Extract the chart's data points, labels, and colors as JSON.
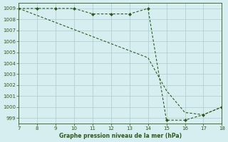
{
  "series1_x": [
    7,
    8,
    9,
    10,
    11,
    12,
    13,
    14,
    15,
    16,
    17,
    18
  ],
  "series1_y": [
    1009,
    1009,
    1009,
    1009,
    1008.5,
    1008.5,
    1008.5,
    1009,
    998.8,
    998.8,
    999.3,
    1000
  ],
  "series2_x": [
    7,
    14,
    15,
    16,
    17,
    18
  ],
  "series2_y": [
    1009,
    1004.5,
    1001.5,
    999.5,
    999.3,
    1000
  ],
  "xlim": [
    7,
    18
  ],
  "ylim": [
    998.5,
    1009.5
  ],
  "xticks": [
    7,
    8,
    9,
    10,
    11,
    12,
    13,
    14,
    15,
    16,
    17,
    18
  ],
  "yticks": [
    999,
    1000,
    1001,
    1002,
    1003,
    1004,
    1005,
    1006,
    1007,
    1008,
    1009
  ],
  "line_color": "#2d5a1b",
  "marker_color": "#2d5a1b",
  "bg_color": "#d6eef0",
  "grid_color": "#a8cdd0",
  "xlabel": "Graphe pression niveau de la mer (hPa)",
  "xlabel_color": "#2d5a1b",
  "tick_color": "#2d5a1b"
}
